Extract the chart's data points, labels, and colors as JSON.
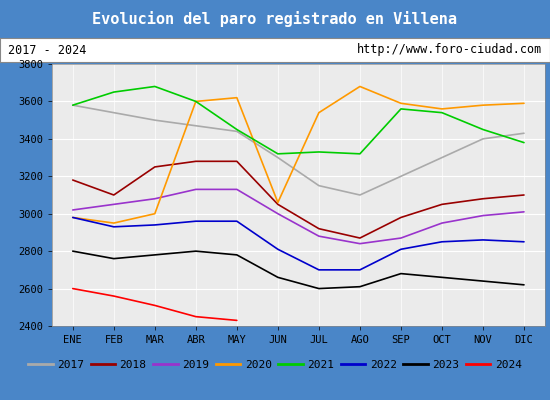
{
  "title": "Evolucion del paro registrado en Villena",
  "title_bg": "#4a86c8",
  "subtitle_left": "2017 - 2024",
  "subtitle_right": "http://www.foro-ciudad.com",
  "months": [
    "ENE",
    "FEB",
    "MAR",
    "ABR",
    "MAY",
    "JUN",
    "JUL",
    "AGO",
    "SEP",
    "OCT",
    "NOV",
    "DIC"
  ],
  "ylim": [
    2400,
    3800
  ],
  "yticks": [
    2400,
    2600,
    2800,
    3000,
    3200,
    3400,
    3600,
    3800
  ],
  "series": {
    "2017": {
      "color": "#aaaaaa",
      "data": [
        3580,
        3540,
        3500,
        3470,
        3440,
        3300,
        3150,
        3100,
        3200,
        3300,
        3400,
        3430
      ]
    },
    "2018": {
      "color": "#990000",
      "data": [
        3180,
        3100,
        3250,
        3280,
        3280,
        3050,
        2920,
        2870,
        2980,
        3050,
        3080,
        3100
      ]
    },
    "2019": {
      "color": "#9933cc",
      "data": [
        3020,
        3050,
        3080,
        3130,
        3130,
        3000,
        2880,
        2840,
        2870,
        2950,
        2990,
        3010
      ]
    },
    "2020": {
      "color": "#ff9900",
      "data": [
        2980,
        2950,
        3000,
        3600,
        3620,
        3060,
        3540,
        3680,
        3590,
        3560,
        3580,
        3590
      ]
    },
    "2021": {
      "color": "#00cc00",
      "data": [
        3580,
        3650,
        3680,
        3600,
        3450,
        3320,
        3330,
        3320,
        3560,
        3540,
        3450,
        3380
      ]
    },
    "2022": {
      "color": "#0000cc",
      "data": [
        2980,
        2930,
        2940,
        2960,
        2960,
        2810,
        2700,
        2700,
        2810,
        2850,
        2860,
        2850
      ]
    },
    "2023": {
      "color": "#000000",
      "data": [
        2800,
        2760,
        2780,
        2800,
        2780,
        2660,
        2600,
        2610,
        2680,
        2660,
        2640,
        2620
      ]
    },
    "2024": {
      "color": "#ff0000",
      "data": [
        2600,
        2560,
        2510,
        2450,
        2430,
        null,
        null,
        null,
        null,
        null,
        null,
        null
      ]
    }
  }
}
